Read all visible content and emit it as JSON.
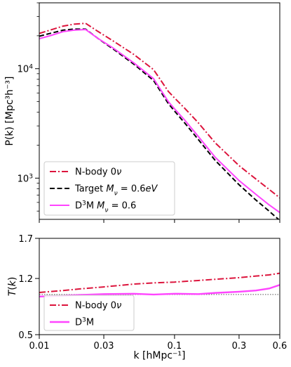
{
  "colors": {
    "nbody": "#dc143c",
    "target": "#000000",
    "d3m": "#ff44ff",
    "ref_line": "#555555"
  },
  "chart_data": [
    {
      "type": "line",
      "xscale": "log",
      "yscale": "log",
      "xlim": [
        0.01,
        0.6
      ],
      "ylim": [
        420,
        40000
      ],
      "ylabel": "P(k) [Mpc³h⁻³]",
      "ytick_labels": [
        {
          "value": 1000,
          "base": "10",
          "exp": "3"
        },
        {
          "value": 10000,
          "base": "10",
          "exp": "4"
        }
      ],
      "legend": {
        "placement": "lower-left",
        "entries": [
          {
            "series": "nbody",
            "parts": [
              {
                "t": "N-body 0"
              },
              {
                "t": "ν",
                "italic": true
              }
            ]
          },
          {
            "series": "target",
            "parts": [
              {
                "t": "Target "
              },
              {
                "t": "M",
                "italic": true
              },
              {
                "t": "ν",
                "italic": true,
                "sub": true
              },
              {
                "t": " = 0.6"
              },
              {
                "t": "eV",
                "italic": true
              }
            ]
          },
          {
            "series": "d3m",
            "parts": [
              {
                "t": "D"
              },
              {
                "t": "3",
                "sup": true
              },
              {
                "t": "M "
              },
              {
                "t": "M",
                "italic": true
              },
              {
                "t": "ν",
                "italic": true,
                "sub": true
              },
              {
                "t": " = 0.6"
              }
            ]
          }
        ]
      },
      "series": [
        {
          "key": "nbody",
          "dash": "dashdot",
          "width": 2,
          "x": [
            0.01,
            0.012,
            0.015,
            0.018,
            0.022,
            0.027,
            0.035,
            0.05,
            0.07,
            0.09,
            0.1,
            0.12,
            0.15,
            0.2,
            0.3,
            0.4,
            0.5,
            0.6
          ],
          "y": [
            21000,
            22500,
            24500,
            25500,
            26000,
            22000,
            18000,
            13500,
            9800,
            6200,
            5400,
            4300,
            3200,
            2100,
            1300,
            980,
            790,
            660
          ]
        },
        {
          "key": "target",
          "dash": "dashed",
          "width": 2,
          "x": [
            0.01,
            0.012,
            0.015,
            0.018,
            0.022,
            0.027,
            0.035,
            0.05,
            0.07,
            0.09,
            0.1,
            0.12,
            0.15,
            0.2,
            0.3,
            0.4,
            0.5,
            0.6
          ],
          "y": [
            19800,
            21000,
            22500,
            23000,
            23000,
            19000,
            15200,
            11000,
            7800,
            4800,
            4100,
            3150,
            2250,
            1450,
            870,
            630,
            500,
            410
          ]
        },
        {
          "key": "d3m",
          "dash": "solid",
          "width": 2,
          "x": [
            0.01,
            0.012,
            0.015,
            0.018,
            0.022,
            0.027,
            0.035,
            0.05,
            0.07,
            0.09,
            0.1,
            0.12,
            0.15,
            0.2,
            0.3,
            0.4,
            0.5,
            0.6
          ],
          "y": [
            18800,
            20000,
            21800,
            22500,
            22800,
            19000,
            15500,
            11300,
            8100,
            5000,
            4300,
            3350,
            2400,
            1550,
            950,
            710,
            570,
            485
          ]
        }
      ]
    },
    {
      "type": "line",
      "xscale": "log",
      "yscale": "linear",
      "xlim": [
        0.01,
        0.6
      ],
      "ylim": [
        0.5,
        1.7
      ],
      "xlabel": "k [hMpc⁻¹]",
      "ylabel": "T(k)",
      "xticks": [
        {
          "value": 0.01,
          "label": "0.01"
        },
        {
          "value": 0.03,
          "label": "0.03"
        },
        {
          "value": 0.1,
          "label": "0.1"
        },
        {
          "value": 0.3,
          "label": "0.3"
        },
        {
          "value": 0.6,
          "label": "0.6"
        }
      ],
      "yticks": [
        {
          "value": 0.5,
          "label": "0.5"
        },
        {
          "value": 1.2,
          "label": "1.2"
        },
        {
          "value": 1.7,
          "label": "1.7"
        }
      ],
      "reference_line": 1.0,
      "legend": {
        "placement": "lower-left",
        "entries": [
          {
            "series": "nbody",
            "parts": [
              {
                "t": "N-body 0"
              },
              {
                "t": "ν",
                "italic": true
              }
            ]
          },
          {
            "series": "d3m",
            "parts": [
              {
                "t": "D"
              },
              {
                "t": "3",
                "sup": true
              },
              {
                "t": "M"
              }
            ]
          }
        ]
      },
      "series": [
        {
          "key": "nbody",
          "dash": "dashdot",
          "width": 2,
          "x": [
            0.01,
            0.015,
            0.02,
            0.03,
            0.05,
            0.07,
            0.1,
            0.15,
            0.2,
            0.3,
            0.4,
            0.5,
            0.6
          ],
          "y": [
            1.025,
            1.05,
            1.07,
            1.095,
            1.13,
            1.145,
            1.155,
            1.175,
            1.19,
            1.21,
            1.23,
            1.245,
            1.265
          ]
        },
        {
          "key": "d3m",
          "dash": "solid",
          "width": 2.4,
          "x": [
            0.01,
            0.015,
            0.02,
            0.03,
            0.05,
            0.07,
            0.1,
            0.15,
            0.2,
            0.3,
            0.4,
            0.5,
            0.6
          ],
          "y": [
            0.975,
            0.985,
            0.995,
            1.005,
            1.01,
            1.0,
            1.01,
            1.005,
            1.02,
            1.035,
            1.05,
            1.075,
            1.12
          ]
        }
      ]
    }
  ]
}
